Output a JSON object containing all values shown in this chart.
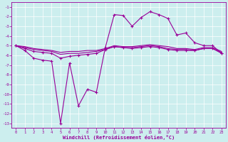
{
  "x": [
    0,
    1,
    2,
    3,
    4,
    5,
    6,
    7,
    8,
    9,
    10,
    11,
    12,
    13,
    14,
    15,
    16,
    17,
    18,
    19,
    20,
    21,
    22,
    23
  ],
  "line1": [
    -5.0,
    -5.5,
    -6.3,
    -6.5,
    -6.6,
    -13.0,
    -6.8,
    -11.2,
    -9.5,
    -9.8,
    -5.2,
    -1.8,
    -1.9,
    -3.0,
    -2.1,
    -1.5,
    -1.8,
    -2.2,
    -3.9,
    -3.7,
    -4.7,
    -5.0,
    -5.0,
    -5.8
  ],
  "line2": [
    -5.0,
    -5.3,
    -5.6,
    -5.7,
    -5.8,
    -6.3,
    -6.1,
    -6.0,
    -5.9,
    -5.8,
    -5.4,
    -5.1,
    -5.2,
    -5.3,
    -5.2,
    -5.1,
    -5.2,
    -5.4,
    -5.5,
    -5.5,
    -5.5,
    -5.3,
    -5.3,
    -5.8
  ],
  "line3": [
    -5.0,
    -5.2,
    -5.4,
    -5.5,
    -5.6,
    -5.9,
    -5.8,
    -5.8,
    -5.7,
    -5.6,
    -5.4,
    -5.1,
    -5.2,
    -5.2,
    -5.1,
    -5.0,
    -5.1,
    -5.3,
    -5.4,
    -5.4,
    -5.5,
    -5.3,
    -5.3,
    -5.7
  ],
  "line4": [
    -5.0,
    -5.1,
    -5.3,
    -5.4,
    -5.5,
    -5.7,
    -5.6,
    -5.6,
    -5.5,
    -5.5,
    -5.3,
    -5.0,
    -5.1,
    -5.1,
    -5.0,
    -4.9,
    -5.0,
    -5.1,
    -5.3,
    -5.3,
    -5.4,
    -5.2,
    -5.2,
    -5.6
  ],
  "color": "#990099",
  "bg_color": "#cceeee",
  "xlabel": "Windchill (Refroidissement éolien,°C)",
  "xlim": [
    -0.5,
    23.5
  ],
  "ylim": [
    -13.5,
    -0.5
  ],
  "yticks": [
    -1,
    -2,
    -3,
    -4,
    -5,
    -6,
    -7,
    -8,
    -9,
    -10,
    -11,
    -12,
    -13
  ],
  "xticks": [
    0,
    1,
    2,
    3,
    4,
    5,
    6,
    7,
    8,
    9,
    10,
    11,
    12,
    13,
    14,
    15,
    16,
    17,
    18,
    19,
    20,
    21,
    22,
    23
  ]
}
